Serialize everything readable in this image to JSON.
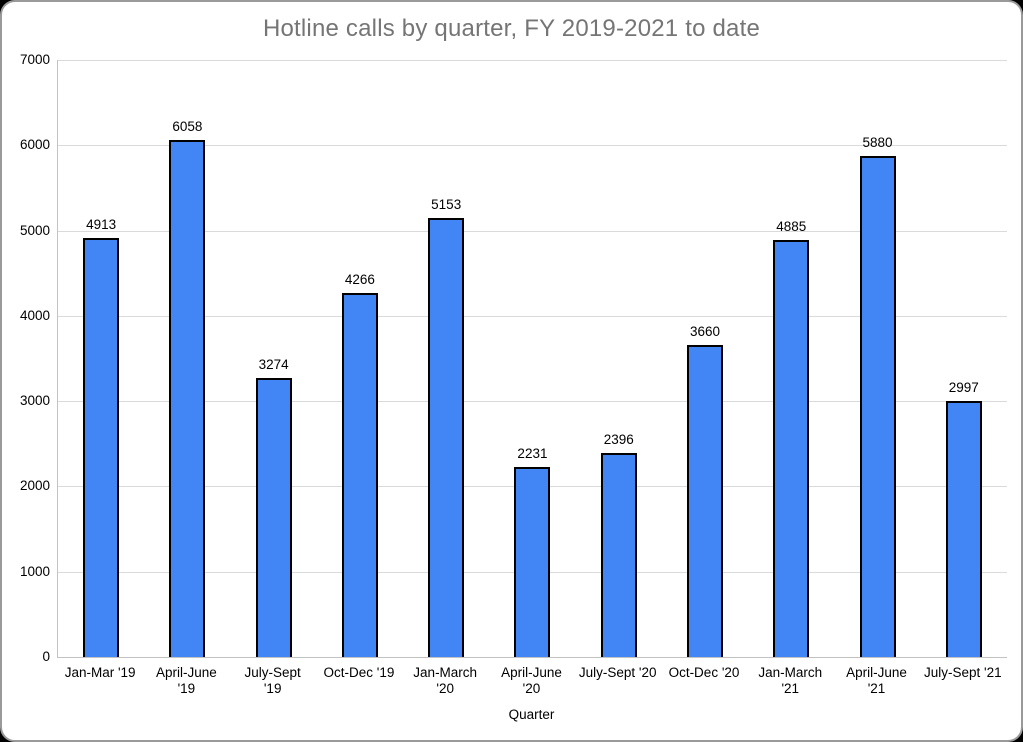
{
  "chart_data": {
    "type": "bar",
    "title": "Hotline calls by quarter, FY 2019-2021 to date",
    "xlabel": "Quarter",
    "ylabel": "",
    "categories": [
      "Jan-Mar '19",
      "April-June '19",
      "July-Sept '19",
      "Oct-Dec '19",
      "Jan-March '20",
      "April-June '20",
      "July-Sept '20",
      "Oct-Dec '20",
      "Jan-March '21",
      "April-June '21",
      "July-Sept '21"
    ],
    "category_lines": [
      [
        "Jan-Mar '19"
      ],
      [
        "April-June",
        "'19"
      ],
      [
        "July-Sept",
        "'19"
      ],
      [
        "Oct-Dec '19"
      ],
      [
        "Jan-March",
        "'20"
      ],
      [
        "April-June",
        "'20"
      ],
      [
        "July-Sept '20"
      ],
      [
        "Oct-Dec '20"
      ],
      [
        "Jan-March",
        "'21"
      ],
      [
        "April-June",
        "'21"
      ],
      [
        "July-Sept '21"
      ]
    ],
    "values": [
      4913,
      6058,
      3274,
      4266,
      5153,
      2231,
      2396,
      3660,
      4885,
      5880,
      2997
    ],
    "ylim": [
      0,
      7000
    ],
    "yticks": [
      0,
      1000,
      2000,
      3000,
      4000,
      5000,
      6000,
      7000
    ],
    "grid": true,
    "legend": "none",
    "data_labels": true,
    "colors": {
      "bar_fill": "#4285f4",
      "bar_border": "#000000",
      "title_text": "#757575",
      "gridline": "#dadada",
      "axis_line": "#c2c2c2",
      "tick_text": "#000000"
    }
  }
}
